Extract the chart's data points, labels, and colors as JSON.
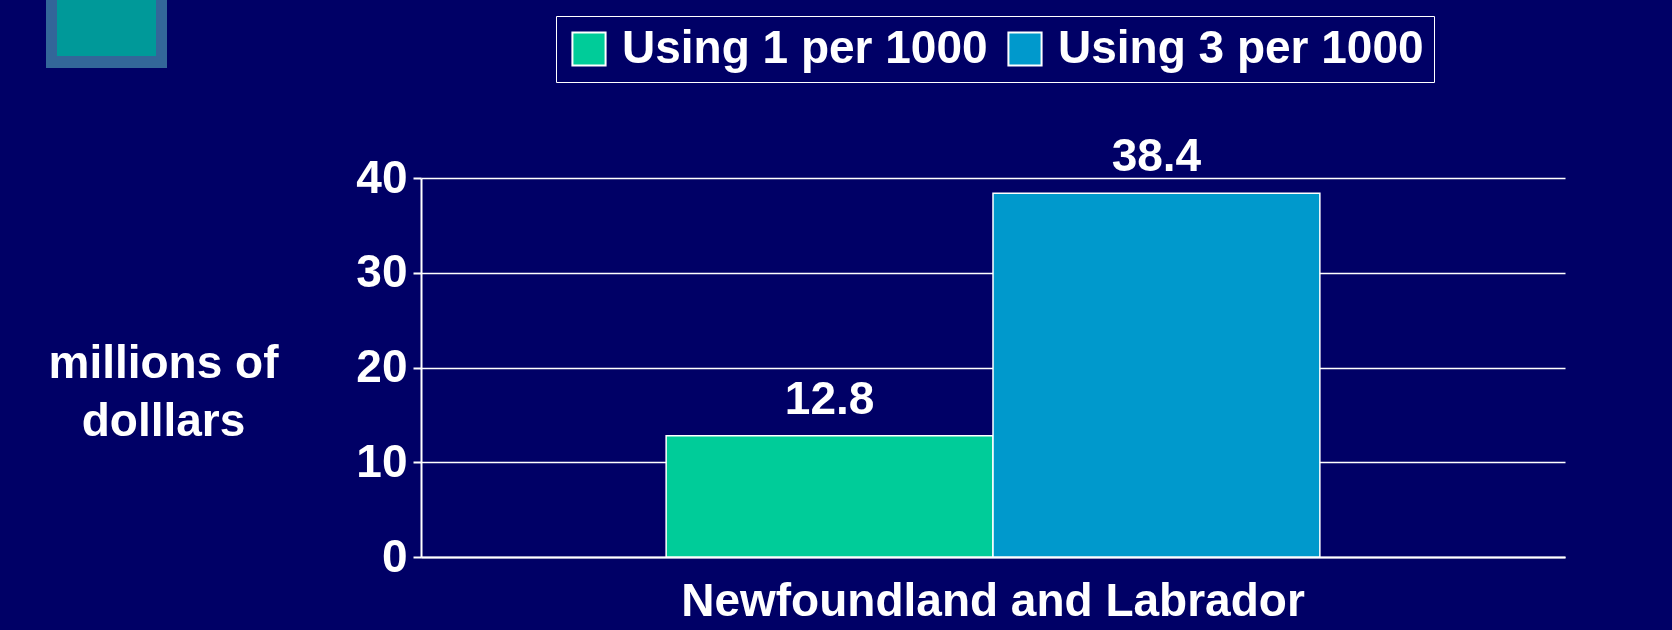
{
  "chart_data": {
    "type": "bar",
    "ylabel": "millions of dolllars",
    "categories": [
      "Newfoundland and Labrador"
    ],
    "series": [
      {
        "name": "Using 1 per 1000",
        "color": "#00cc99",
        "values": [
          12.8
        ]
      },
      {
        "name": "Using 3 per 1000",
        "color": "#0099cc",
        "values": [
          38.4
        ]
      }
    ],
    "ylim": [
      0,
      40
    ],
    "yticks": [
      0,
      10,
      20,
      30,
      40
    ],
    "grid": "y",
    "legend": "top right",
    "data_labels": true
  }
}
